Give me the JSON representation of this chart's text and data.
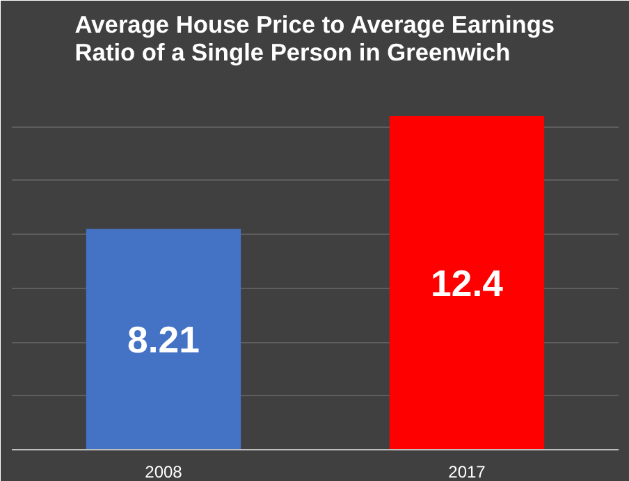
{
  "chart_data": {
    "type": "bar",
    "title": "Average House Price to Average Earnings Ratio of a Single Person in Greenwich",
    "categories": [
      "2008",
      "2017"
    ],
    "values": [
      8.21,
      12.4
    ],
    "colors": [
      "#4472c4",
      "#ff0000"
    ],
    "ylim": [
      0,
      14
    ],
    "yticks": [
      {
        "value": 0,
        "label": null
      },
      {
        "value": 2,
        "label": null
      },
      {
        "value": 4,
        "label": null
      },
      {
        "value": 6,
        "label": null
      },
      {
        "value": 8,
        "label": null
      },
      {
        "value": 10,
        "label": null
      },
      {
        "value": 12,
        "label": null
      },
      {
        "value": 14,
        "label": null
      }
    ],
    "grid": "y",
    "tick_labels": "x",
    "data_labels": true
  }
}
